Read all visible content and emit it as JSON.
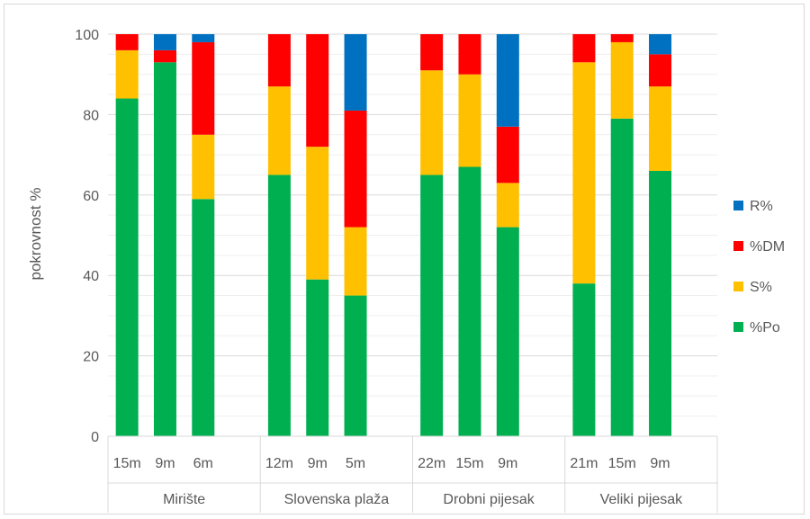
{
  "chart_data": {
    "type": "bar",
    "stacked": true,
    "ylabel": "pokrovnost %",
    "ylim": [
      0,
      100
    ],
    "yticks": [
      0,
      20,
      40,
      60,
      80,
      100
    ],
    "grid": true,
    "legend_position": "right",
    "groups": [
      {
        "label": "Mirište",
        "categories": [
          "15m",
          "9m",
          "6m"
        ]
      },
      {
        "label": "Slovenska plaža",
        "categories": [
          "12m",
          "9m",
          "5m"
        ]
      },
      {
        "label": "Drobni pijesak",
        "categories": [
          "22m",
          "15m",
          "9m"
        ]
      },
      {
        "label": "Veliki pijesak",
        "categories": [
          "21m",
          "15m",
          "9m"
        ]
      }
    ],
    "series": [
      {
        "name": "%Po",
        "color": "#00b050",
        "values": [
          84,
          93,
          59,
          65,
          39,
          35,
          65,
          67,
          52,
          38,
          79,
          66
        ]
      },
      {
        "name": "S%",
        "color": "#ffc000",
        "values": [
          12,
          0,
          16,
          22,
          33,
          17,
          26,
          23,
          11,
          55,
          19,
          21
        ]
      },
      {
        "name": "%DM",
        "color": "#ff0000",
        "values": [
          4,
          3,
          23,
          13,
          28,
          29,
          9,
          10,
          14,
          7,
          2,
          8
        ]
      },
      {
        "name": "R%",
        "color": "#0070c0",
        "values": [
          0,
          4,
          2,
          0,
          0,
          19,
          0,
          0,
          23,
          0,
          0,
          5
        ]
      }
    ]
  }
}
